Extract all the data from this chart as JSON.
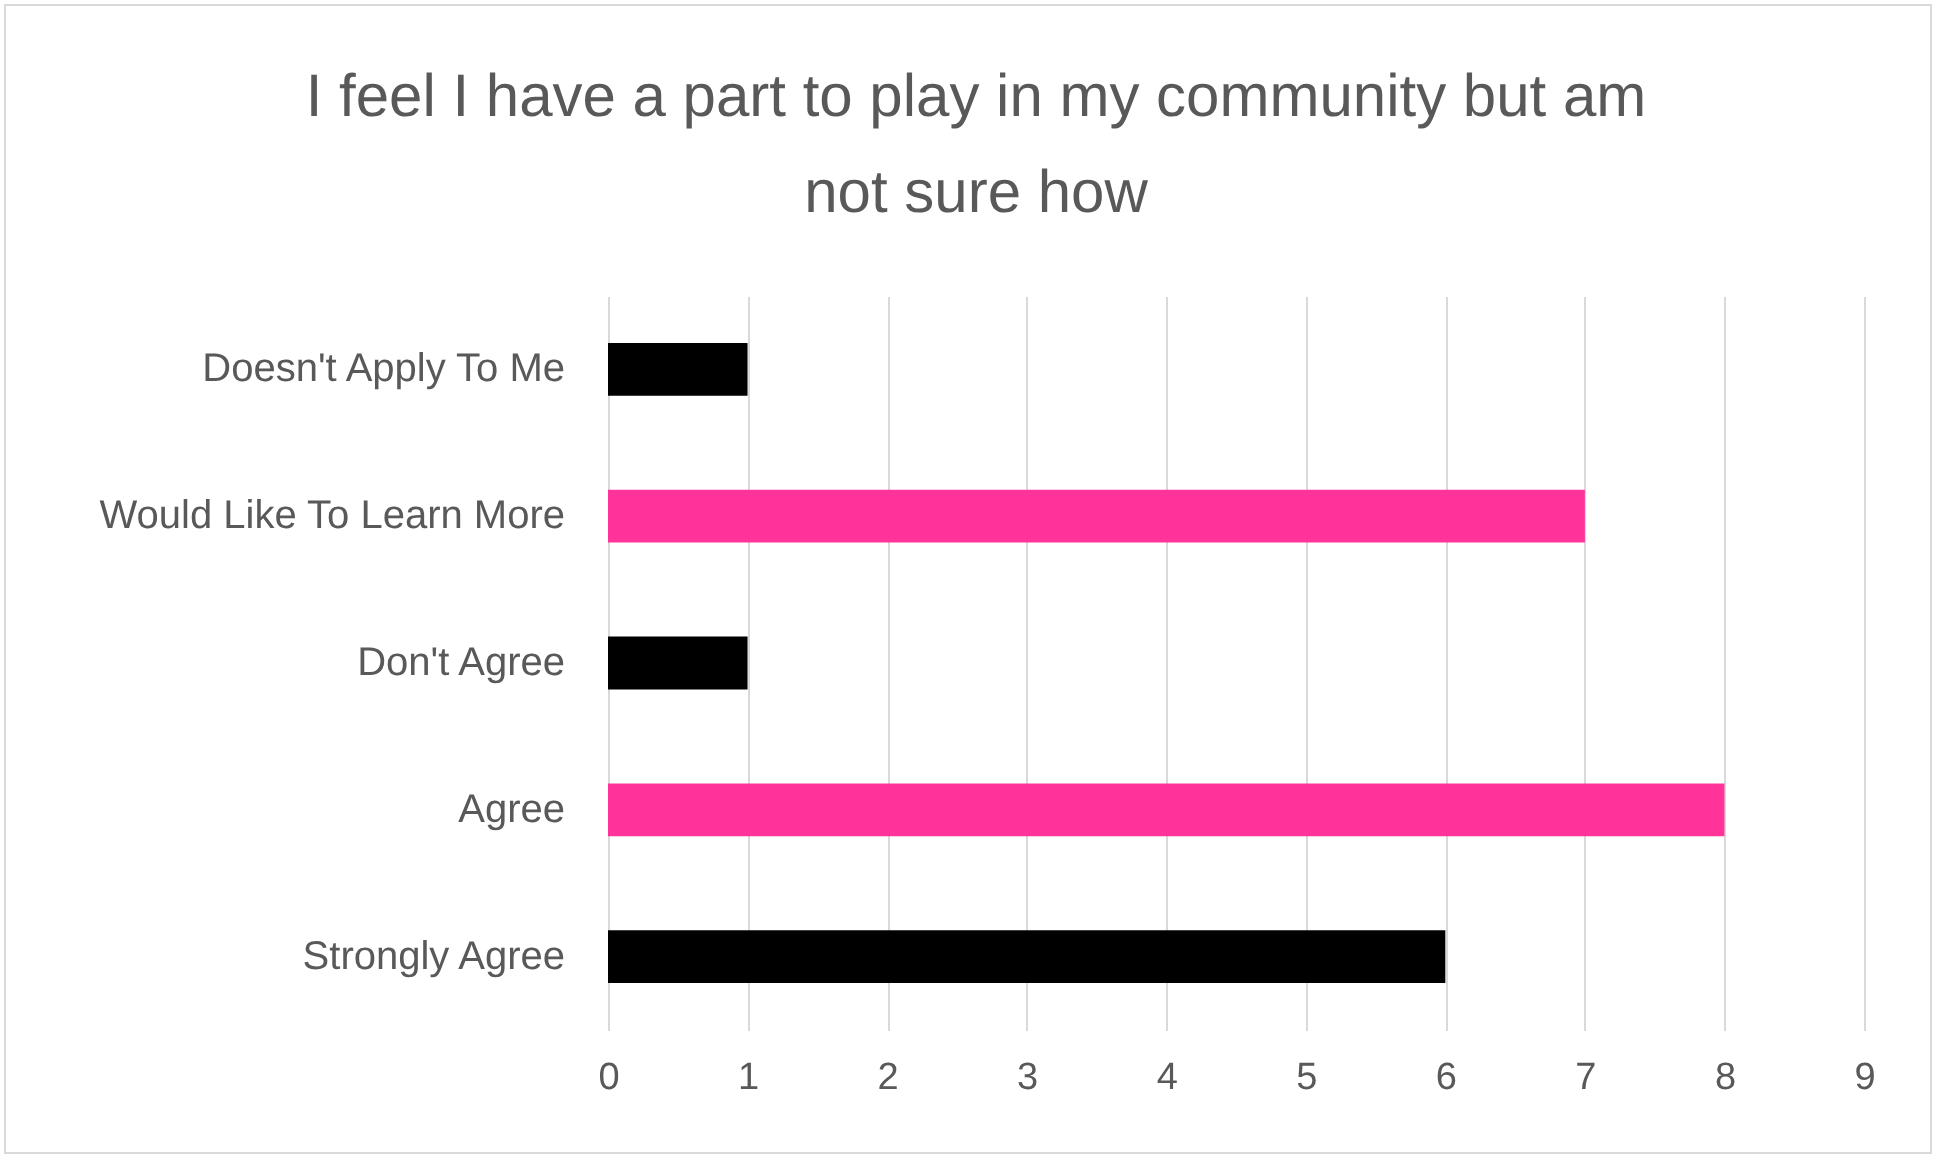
{
  "chart_data": {
    "type": "bar",
    "orientation": "horizontal",
    "title": "I feel I have a part to play in my community but am not sure how",
    "categories": [
      "Doesn't Apply To Me",
      "Would Like To Learn More",
      "Don't Agree",
      "Agree",
      "Strongly Agree"
    ],
    "values": [
      1,
      7,
      1,
      8,
      6
    ],
    "colors": [
      "#000000",
      "#ff3399",
      "#000000",
      "#ff3399",
      "#000000"
    ],
    "xlim": [
      0,
      9
    ],
    "xticks": [
      0,
      1,
      2,
      3,
      4,
      5,
      6,
      7,
      8,
      9
    ],
    "grid": "x"
  }
}
